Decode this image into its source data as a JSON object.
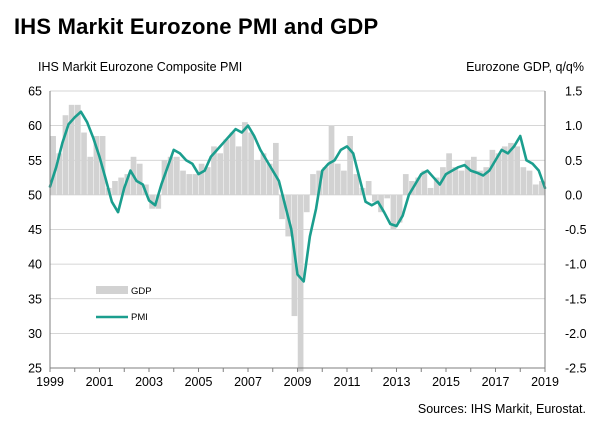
{
  "title": "IHS Markit Eurozone PMI and GDP",
  "source": "Sources: IHS Markit, Eurostat.",
  "colors": {
    "pmi": "#1b9e8e",
    "gdp": "#d2d2d2",
    "grid": "#c8c8c8",
    "axis": "#7f7f7f"
  },
  "chart_data": {
    "type": "bar+line",
    "title": "IHS Markit Eurozone PMI and GDP",
    "ylabel": "IHS Markit Eurozone Composite PMI",
    "y2label": "Eurozone GDP, q/q%",
    "xlim": [
      1999,
      2019
    ],
    "ylim": [
      25,
      65
    ],
    "y2lim": [
      -2.5,
      1.5
    ],
    "x_ticks": [
      "1999",
      "2001",
      "2003",
      "2005",
      "2007",
      "2009",
      "2011",
      "2013",
      "2015",
      "2017",
      "2019"
    ],
    "y_ticks": [
      25,
      30,
      35,
      40,
      45,
      50,
      55,
      60,
      65
    ],
    "y2_ticks": [
      "-2.5",
      "-2.0",
      "-1.5",
      "-1.0",
      "-0.5",
      "0.0",
      "0.5",
      "1.0",
      "1.5"
    ],
    "legend": {
      "position": "center-left",
      "entries": [
        "GDP",
        "PMI"
      ]
    },
    "series": [
      {
        "name": "GDP",
        "kind": "bar",
        "axis": "right",
        "x": [
          1999.0,
          1999.25,
          1999.5,
          1999.75,
          2000.0,
          2000.25,
          2000.5,
          2000.75,
          2001.0,
          2001.25,
          2001.5,
          2001.75,
          2002.0,
          2002.25,
          2002.5,
          2002.75,
          2003.0,
          2003.25,
          2003.5,
          2003.75,
          2004.0,
          2004.25,
          2004.5,
          2004.75,
          2005.0,
          2005.25,
          2005.5,
          2005.75,
          2006.0,
          2006.25,
          2006.5,
          2006.75,
          2007.0,
          2007.25,
          2007.5,
          2007.75,
          2008.0,
          2008.25,
          2008.5,
          2008.75,
          2009.0,
          2009.25,
          2009.5,
          2009.75,
          2010.0,
          2010.25,
          2010.5,
          2010.75,
          2011.0,
          2011.25,
          2011.5,
          2011.75,
          2012.0,
          2012.25,
          2012.5,
          2012.75,
          2013.0,
          2013.25,
          2013.5,
          2013.75,
          2014.0,
          2014.25,
          2014.5,
          2014.75,
          2015.0,
          2015.25,
          2015.5,
          2015.75,
          2016.0,
          2016.25,
          2016.5,
          2016.75,
          2017.0,
          2017.25,
          2017.5,
          2017.75,
          2018.0,
          2018.25,
          2018.5,
          2018.75
        ],
        "values": [
          0.85,
          0.6,
          1.15,
          1.3,
          1.3,
          0.9,
          0.55,
          0.85,
          0.85,
          0.1,
          0.2,
          0.25,
          0.3,
          0.55,
          0.45,
          0.15,
          -0.2,
          -0.2,
          0.5,
          0.55,
          0.55,
          0.35,
          0.3,
          0.3,
          0.45,
          0.4,
          0.7,
          0.6,
          0.8,
          0.9,
          0.7,
          1.05,
          0.9,
          0.5,
          0.6,
          0.45,
          0.75,
          -0.35,
          -0.6,
          -1.75,
          -2.55,
          -0.25,
          0.3,
          0.35,
          0.4,
          1.0,
          0.45,
          0.35,
          0.85,
          0.3,
          0.1,
          0.2,
          -0.1,
          -0.25,
          -0.05,
          -0.5,
          -0.4,
          0.3,
          0.2,
          0.25,
          0.35,
          0.1,
          0.25,
          0.4,
          0.6,
          0.4,
          0.35,
          0.5,
          0.55,
          0.35,
          0.4,
          0.65,
          0.6,
          0.7,
          0.75,
          0.7,
          0.4,
          0.35,
          0.15,
          0.2
        ]
      },
      {
        "name": "PMI",
        "kind": "line",
        "axis": "left",
        "x": [
          1999.0,
          1999.25,
          1999.5,
          1999.75,
          2000.0,
          2000.25,
          2000.5,
          2000.75,
          2001.0,
          2001.25,
          2001.5,
          2001.75,
          2002.0,
          2002.25,
          2002.5,
          2002.75,
          2003.0,
          2003.25,
          2003.5,
          2003.75,
          2004.0,
          2004.25,
          2004.5,
          2004.75,
          2005.0,
          2005.25,
          2005.5,
          2005.75,
          2006.0,
          2006.25,
          2006.5,
          2006.75,
          2007.0,
          2007.25,
          2007.5,
          2007.75,
          2008.0,
          2008.25,
          2008.5,
          2008.75,
          2009.0,
          2009.25,
          2009.5,
          2009.75,
          2010.0,
          2010.25,
          2010.5,
          2010.75,
          2011.0,
          2011.25,
          2011.5,
          2011.75,
          2012.0,
          2012.25,
          2012.5,
          2012.75,
          2013.0,
          2013.25,
          2013.5,
          2013.75,
          2014.0,
          2014.25,
          2014.5,
          2014.75,
          2015.0,
          2015.25,
          2015.5,
          2015.75,
          2016.0,
          2016.25,
          2016.5,
          2016.75,
          2017.0,
          2017.25,
          2017.5,
          2017.75,
          2018.0,
          2018.25,
          2018.5,
          2018.75,
          2019.0
        ],
        "values": [
          51.2,
          54.0,
          57.5,
          60.2,
          61.2,
          62.0,
          60.5,
          58.2,
          55.5,
          52.3,
          49.0,
          47.5,
          51.0,
          53.5,
          52.0,
          51.5,
          49.2,
          48.5,
          51.5,
          54.0,
          56.5,
          56.0,
          55.0,
          54.5,
          53.0,
          53.5,
          55.5,
          56.5,
          57.5,
          58.5,
          59.5,
          59.0,
          60.0,
          58.5,
          56.5,
          55.0,
          53.5,
          52.0,
          48.5,
          45.0,
          38.5,
          37.5,
          44.0,
          48.0,
          53.5,
          54.5,
          55.0,
          56.5,
          57.0,
          56.0,
          52.5,
          49.0,
          48.5,
          49.0,
          47.5,
          45.8,
          45.5,
          47.0,
          50.0,
          51.5,
          53.0,
          53.5,
          52.5,
          51.5,
          53.0,
          53.5,
          54.0,
          54.3,
          53.5,
          53.2,
          52.8,
          53.5,
          55.0,
          56.5,
          56.0,
          57.0,
          58.5,
          55.0,
          54.5,
          53.5,
          51.0
        ]
      }
    ]
  }
}
